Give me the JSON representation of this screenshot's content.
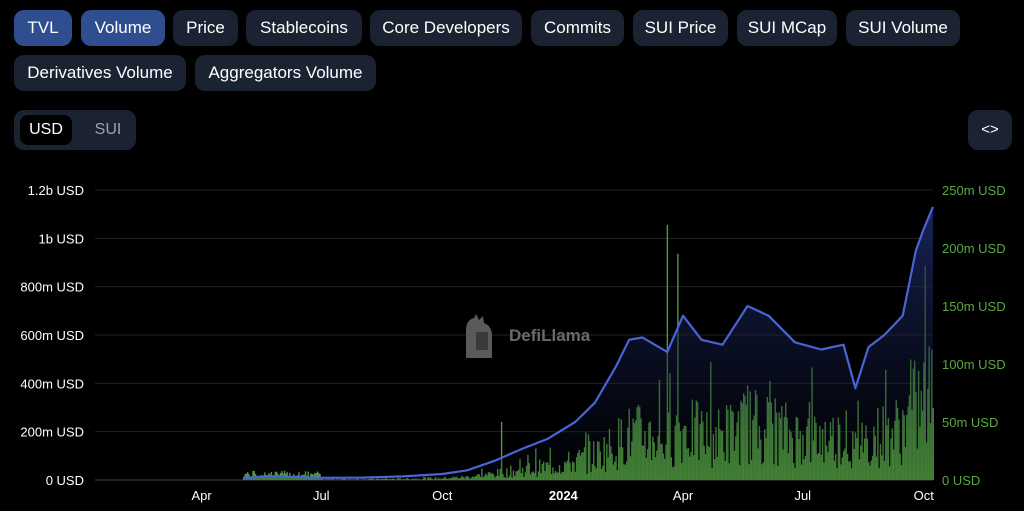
{
  "tabs": [
    {
      "label": "TVL",
      "active": true
    },
    {
      "label": "Volume",
      "active": true
    },
    {
      "label": "Price",
      "active": false
    },
    {
      "label": "Stablecoins",
      "active": false
    },
    {
      "label": "Core Developers",
      "active": false
    },
    {
      "label": "Commits",
      "active": false
    },
    {
      "label": "SUI Price",
      "active": false
    },
    {
      "label": "SUI MCap",
      "active": false
    },
    {
      "label": "SUI Volume",
      "active": false
    },
    {
      "label": "Derivatives Volume",
      "active": false
    },
    {
      "label": "Aggregators Volume",
      "active": false
    }
  ],
  "currency_toggle": {
    "selected": "USD",
    "other": "SUI"
  },
  "embed_button": {
    "label": "<>",
    "icon": "code-icon"
  },
  "watermark": {
    "text": "DefiLlama",
    "icon": "llama-logo"
  },
  "colors": {
    "tvl_line": "#4a63d6",
    "volume_bars": "#4f9a3a",
    "right_axis_text": "#58a83f",
    "left_axis_text": "#ffffff",
    "active_tab": "#2f4e8f",
    "inactive_tab": "#1b2333"
  },
  "chart_data": {
    "type": "line+bar",
    "x_tick_labels": [
      "Apr",
      "Jul",
      "Oct",
      "2024",
      "Apr",
      "Jul",
      "Oct"
    ],
    "x_range": [
      "2023-01-10",
      "2024-10-08"
    ],
    "left_axis": {
      "label": "TVL",
      "ticks": [
        "0 USD",
        "200m USD",
        "400m USD",
        "600m USD",
        "800m USD",
        "1b USD",
        "1.2b USD"
      ],
      "range": [
        0,
        1200000000
      ]
    },
    "right_axis": {
      "label": "Volume",
      "ticks": [
        "0 USD",
        "50m USD",
        "100m USD",
        "150m USD",
        "200m USD",
        "250m USD"
      ],
      "range": [
        0,
        250000000
      ]
    },
    "grid": true,
    "series": [
      {
        "name": "TVL",
        "kind": "line",
        "axis": "left",
        "points": [
          [
            "2023-05-03",
            8000000
          ],
          [
            "2023-05-20",
            16000000
          ],
          [
            "2023-06-10",
            13000000
          ],
          [
            "2023-07-01",
            9000000
          ],
          [
            "2023-08-01",
            10000000
          ],
          [
            "2023-09-01",
            15000000
          ],
          [
            "2023-10-01",
            25000000
          ],
          [
            "2023-10-20",
            40000000
          ],
          [
            "2023-11-10",
            80000000
          ],
          [
            "2023-12-01",
            130000000
          ],
          [
            "2023-12-20",
            170000000
          ],
          [
            "2024-01-10",
            240000000
          ],
          [
            "2024-01-25",
            320000000
          ],
          [
            "2024-02-10",
            470000000
          ],
          [
            "2024-02-20",
            580000000
          ],
          [
            "2024-03-01",
            590000000
          ],
          [
            "2024-03-20",
            530000000
          ],
          [
            "2024-04-01",
            680000000
          ],
          [
            "2024-04-15",
            580000000
          ],
          [
            "2024-05-01",
            560000000
          ],
          [
            "2024-05-20",
            720000000
          ],
          [
            "2024-06-05",
            680000000
          ],
          [
            "2024-06-25",
            570000000
          ],
          [
            "2024-07-15",
            540000000
          ],
          [
            "2024-08-01",
            560000000
          ],
          [
            "2024-08-10",
            380000000
          ],
          [
            "2024-08-20",
            550000000
          ],
          [
            "2024-09-01",
            600000000
          ],
          [
            "2024-09-15",
            680000000
          ],
          [
            "2024-09-25",
            950000000
          ],
          [
            "2024-10-01",
            1040000000
          ],
          [
            "2024-10-08",
            1130000000
          ]
        ]
      },
      {
        "name": "Volume",
        "kind": "bar",
        "axis": "right",
        "daily_from": "2023-05-03",
        "daily_to": "2024-10-08",
        "peaks": [
          [
            "2023-05-03",
            18000000
          ],
          [
            "2023-11-15",
            50000000
          ],
          [
            "2024-03-20",
            220000000
          ],
          [
            "2024-03-28",
            195000000
          ],
          [
            "2024-10-02",
            185000000
          ]
        ]
      }
    ]
  }
}
